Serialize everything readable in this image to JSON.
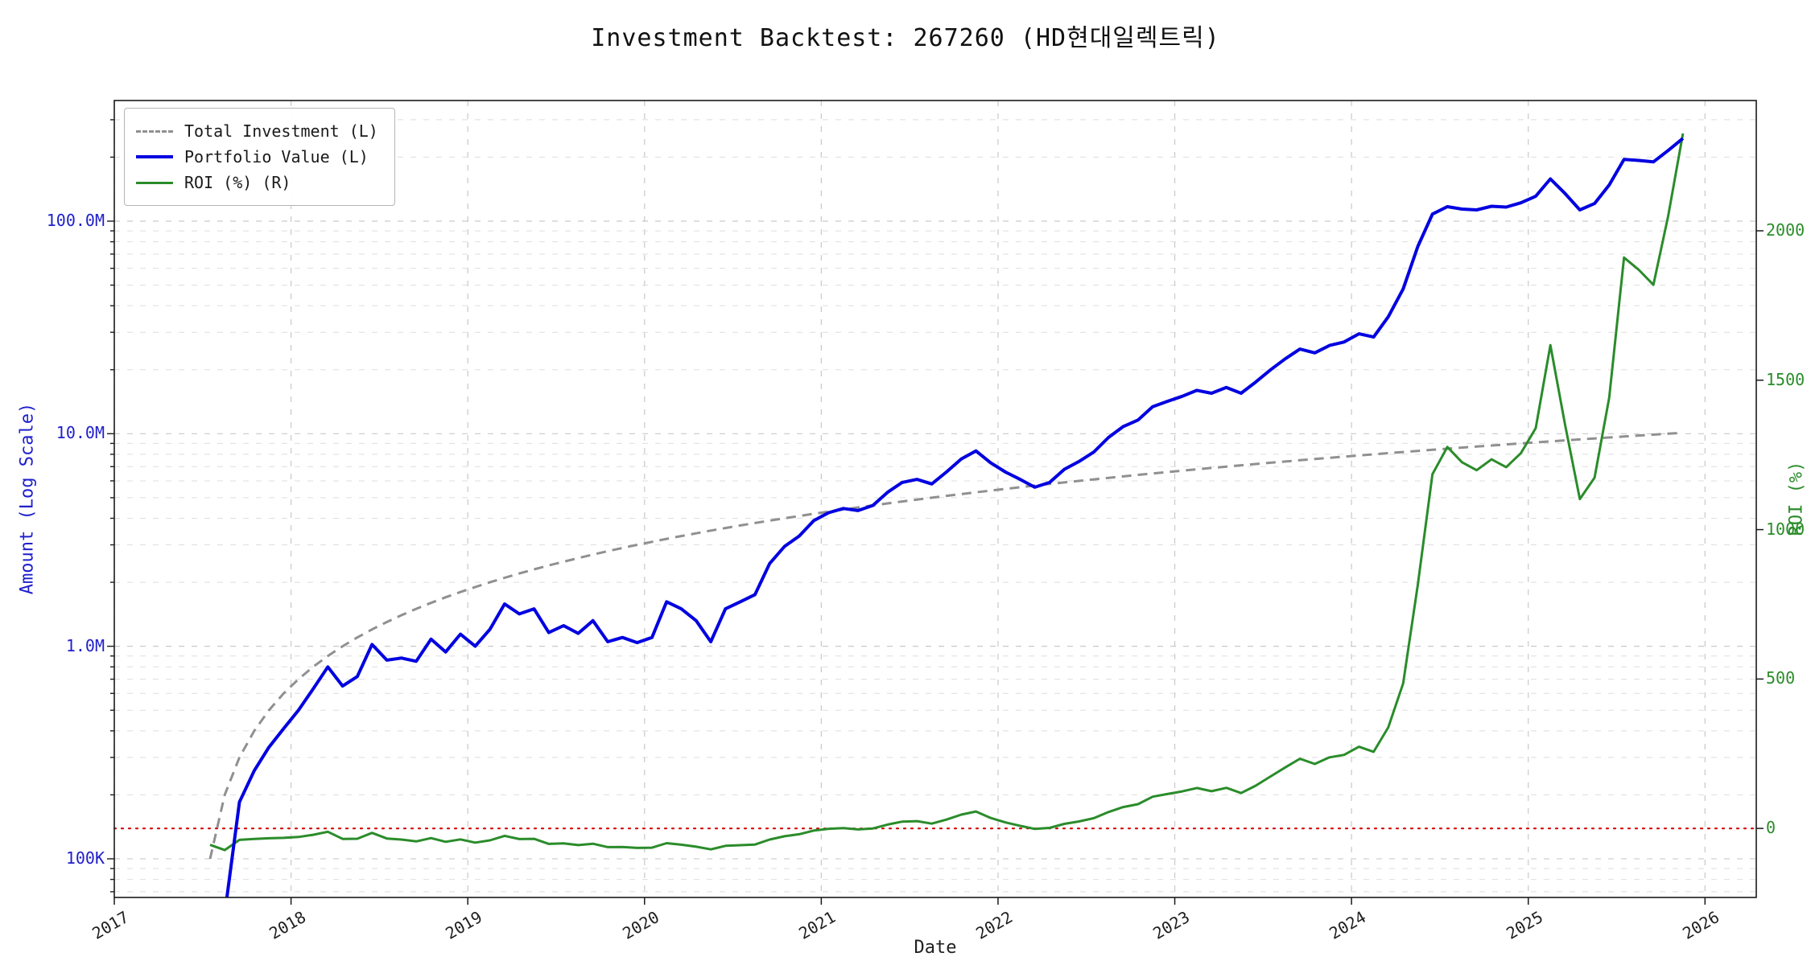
{
  "title": "Investment Backtest: 267260 (HD현대일렉트릭)",
  "axes": {
    "x_label": "Date",
    "left_label": "Amount (Log Scale)",
    "right_label": "ROI (%)",
    "x_ticks": [
      2017,
      2018,
      2019,
      2020,
      2021,
      2022,
      2023,
      2024,
      2025,
      2026
    ],
    "xlim": [
      2017.0,
      2026.29
    ],
    "left_ylim": [
      65800,
      369400000
    ],
    "right_ylim": [
      -231,
      2436
    ],
    "left_ticks": [
      {
        "v": 100000,
        "label": "100K"
      },
      {
        "v": 1000000,
        "label": "1.0M"
      },
      {
        "v": 10000000,
        "label": "10.0M"
      },
      {
        "v": 100000000,
        "label": "100.0M"
      }
    ],
    "right_ticks": [
      {
        "v": 0,
        "label": "0"
      },
      {
        "v": 500,
        "label": "500"
      },
      {
        "v": 1000,
        "label": "1000"
      },
      {
        "v": 1500,
        "label": "1500"
      },
      {
        "v": 2000,
        "label": "2000"
      }
    ]
  },
  "legend": [
    {
      "label": "Total Investment (L)",
      "style": "dashed",
      "color": "#909090"
    },
    {
      "label": "Portfolio Value (L)",
      "style": "solid",
      "color": "#0000e0"
    },
    {
      "label": "ROI (%) (R)",
      "style": "solid",
      "color": "#2a8c2a"
    }
  ],
  "colors": {
    "investment_line": "#909090",
    "portfolio_line": "#0000e0",
    "roi_line": "#2a8c2a",
    "zero_line": "#d40000",
    "left_axis_text": "#2020cc",
    "right_axis_text": "#2a8c2a",
    "grid_major": "#c9c9c9",
    "grid_minor": "#dedede",
    "border": "#1a1a1a"
  },
  "chart_data": {
    "type": "line",
    "title": "Investment Backtest: 267260 (HD현대일렉트릭)",
    "xlabel": "Date",
    "ylabel_left": "Amount (Log Scale)",
    "ylabel_right": "ROI (%)",
    "x_unit": "decimal_year_monthly",
    "amount_unit_multiplier": 1000000,
    "x": [
      2017.542,
      2017.625,
      2017.708,
      2017.792,
      2017.875,
      2017.958,
      2018.042,
      2018.125,
      2018.208,
      2018.292,
      2018.375,
      2018.458,
      2018.542,
      2018.625,
      2018.708,
      2018.792,
      2018.875,
      2018.958,
      2019.042,
      2019.125,
      2019.208,
      2019.292,
      2019.375,
      2019.458,
      2019.542,
      2019.625,
      2019.708,
      2019.792,
      2019.875,
      2019.958,
      2020.042,
      2020.125,
      2020.208,
      2020.292,
      2020.375,
      2020.458,
      2020.542,
      2020.625,
      2020.708,
      2020.792,
      2020.875,
      2020.958,
      2021.042,
      2021.125,
      2021.208,
      2021.292,
      2021.375,
      2021.458,
      2021.542,
      2021.625,
      2021.708,
      2021.792,
      2021.875,
      2021.958,
      2022.042,
      2022.125,
      2022.208,
      2022.292,
      2022.375,
      2022.458,
      2022.542,
      2022.625,
      2022.708,
      2022.792,
      2022.875,
      2022.958,
      2023.042,
      2023.125,
      2023.208,
      2023.292,
      2023.375,
      2023.458,
      2023.542,
      2023.625,
      2023.708,
      2023.792,
      2023.875,
      2023.958,
      2024.042,
      2024.125,
      2024.208,
      2024.292,
      2024.375,
      2024.458,
      2024.542,
      2024.625,
      2024.708,
      2024.792,
      2024.875,
      2024.958,
      2025.042,
      2025.125,
      2025.208,
      2025.292,
      2025.375,
      2025.458,
      2025.542,
      2025.625,
      2025.708,
      2025.792,
      2025.875
    ],
    "series": [
      {
        "name": "Total Investment (L)",
        "axis": "left",
        "unit": "million KRW",
        "values": [
          0.1,
          0.2,
          0.3,
          0.4,
          0.5,
          0.6,
          0.7,
          0.8,
          0.9,
          1.0,
          1.1,
          1.2,
          1.3,
          1.4,
          1.5,
          1.6,
          1.7,
          1.8,
          1.9,
          2.0,
          2.1,
          2.2,
          2.3,
          2.4,
          2.5,
          2.6,
          2.7,
          2.8,
          2.9,
          3.0,
          3.1,
          3.2,
          3.3,
          3.4,
          3.5,
          3.6,
          3.7,
          3.8,
          3.9,
          4.0,
          4.1,
          4.2,
          4.3,
          4.4,
          4.5,
          4.6,
          4.7,
          4.8,
          4.9,
          5.0,
          5.1,
          5.2,
          5.3,
          5.4,
          5.5,
          5.6,
          5.7,
          5.8,
          5.9,
          6.0,
          6.1,
          6.2,
          6.3,
          6.4,
          6.5,
          6.6,
          6.7,
          6.8,
          6.9,
          7.0,
          7.1,
          7.2,
          7.3,
          7.4,
          7.5,
          7.6,
          7.7,
          7.8,
          7.9,
          8.0,
          8.1,
          8.2,
          8.3,
          8.4,
          8.5,
          8.6,
          8.7,
          8.8,
          8.9,
          9.0,
          9.1,
          9.2,
          9.3,
          9.4,
          9.5,
          9.6,
          9.7,
          9.8,
          9.9,
          10.0,
          10.1
        ]
      },
      {
        "name": "Portfolio Value (L)",
        "axis": "left",
        "unit": "million KRW",
        "values": [
          0.045,
          0.055,
          0.185,
          0.26,
          0.335,
          0.41,
          0.5,
          0.63,
          0.8,
          0.65,
          0.72,
          1.02,
          0.86,
          0.88,
          0.85,
          1.08,
          0.94,
          1.14,
          1.0,
          1.2,
          1.58,
          1.42,
          1.5,
          1.16,
          1.25,
          1.15,
          1.32,
          1.05,
          1.1,
          1.04,
          1.1,
          1.62,
          1.5,
          1.32,
          1.05,
          1.5,
          1.62,
          1.75,
          2.45,
          2.95,
          3.3,
          3.9,
          4.25,
          4.45,
          4.35,
          4.6,
          5.3,
          5.9,
          6.1,
          5.8,
          6.6,
          7.6,
          8.3,
          7.3,
          6.6,
          6.1,
          5.6,
          5.9,
          6.8,
          7.4,
          8.2,
          9.6,
          10.8,
          11.6,
          13.4,
          14.2,
          15.0,
          16.0,
          15.5,
          16.5,
          15.5,
          17.5,
          20.0,
          22.5,
          25.0,
          24.0,
          26.0,
          27.0,
          29.5,
          28.5,
          35.5,
          48.0,
          76.0,
          108.0,
          117.0,
          114.0,
          113.0,
          117.5,
          116.5,
          122.0,
          131.0,
          158.0,
          135.0,
          113.0,
          121.0,
          148.0,
          195.0,
          193.0,
          190.0,
          215.0,
          245.0
        ]
      },
      {
        "name": "ROI (%) (R)",
        "axis": "right",
        "unit": "percent",
        "values": [
          -55.0,
          -72.5,
          -38.3,
          -35.0,
          -33.0,
          -31.7,
          -28.6,
          -21.3,
          -11.1,
          -35.0,
          -34.5,
          -15.0,
          -33.8,
          -37.1,
          -43.3,
          -32.5,
          -44.7,
          -36.7,
          -47.4,
          -40.0,
          -24.8,
          -35.5,
          -34.8,
          -51.7,
          -50.0,
          -55.8,
          -51.1,
          -62.5,
          -62.1,
          -65.3,
          -64.5,
          -49.4,
          -54.5,
          -61.2,
          -70.0,
          -58.3,
          -56.2,
          -53.9,
          -37.2,
          -26.3,
          -19.5,
          -7.1,
          -1.2,
          1.1,
          -3.3,
          0.0,
          12.8,
          22.9,
          24.5,
          16.0,
          29.4,
          46.2,
          56.6,
          35.2,
          20.0,
          8.9,
          -1.8,
          1.7,
          15.3,
          23.3,
          34.4,
          54.8,
          71.4,
          81.3,
          106.2,
          115.2,
          123.9,
          135.3,
          124.6,
          135.7,
          118.3,
          143.1,
          174.0,
          204.1,
          233.3,
          215.8,
          237.7,
          246.2,
          273.4,
          256.3,
          338.3,
          485.4,
          815.7,
          1185.7,
          1276.5,
          1225.6,
          1198.9,
          1235.2,
          1209.0,
          1255.6,
          1339.6,
          1617.4,
          1351.6,
          1102.1,
          1173.7,
          1441.7,
          1910.3,
          1869.4,
          1819.2,
          2050.0,
          2325.7
        ]
      }
    ],
    "reference_lines": [
      {
        "axis": "right",
        "value": 0,
        "style": "dotted",
        "color": "#d40000",
        "meaning": "ROI zero line"
      }
    ],
    "legend_position": "upper-left",
    "grid": true
  }
}
